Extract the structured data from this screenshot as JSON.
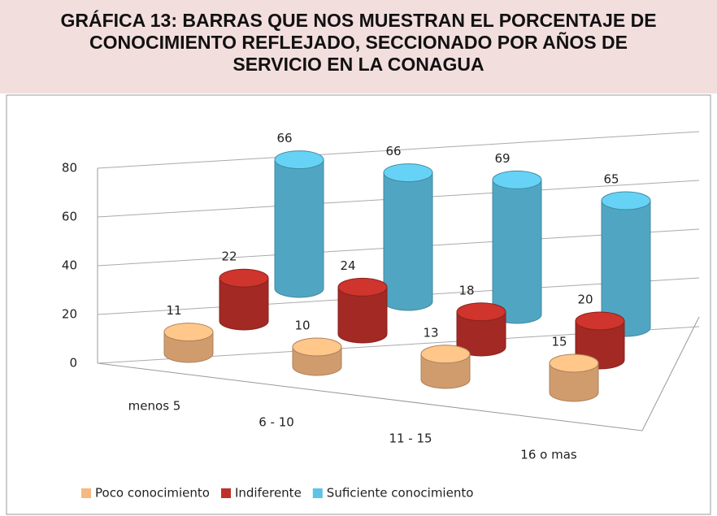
{
  "chart_data": {
    "type": "bar3d",
    "title": "GRÁFICA 13: BARRAS QUE NOS MUESTRAN EL PORCENTAJE DE CONOCIMIENTO REFLEJADO, SECCIONADO POR AÑOS DE SERVICIO EN LA CONAGUA",
    "categories": [
      "menos 5",
      "6 - 10",
      "11 - 15",
      "16 o mas"
    ],
    "series": [
      {
        "name": "Poco conocimiento",
        "color": "#f6b880",
        "values": [
          11,
          10,
          13,
          15
        ]
      },
      {
        "name": "Indiferente",
        "color": "#c0302a",
        "values": [
          22,
          24,
          18,
          20
        ]
      },
      {
        "name": "Suficiente conocimiento",
        "color": "#5ec3e4",
        "values": [
          66,
          66,
          69,
          65
        ]
      }
    ],
    "ylim": [
      0,
      80
    ],
    "yticks": [
      0,
      20,
      40,
      60,
      80
    ],
    "grid": true,
    "legend": "bottom"
  }
}
